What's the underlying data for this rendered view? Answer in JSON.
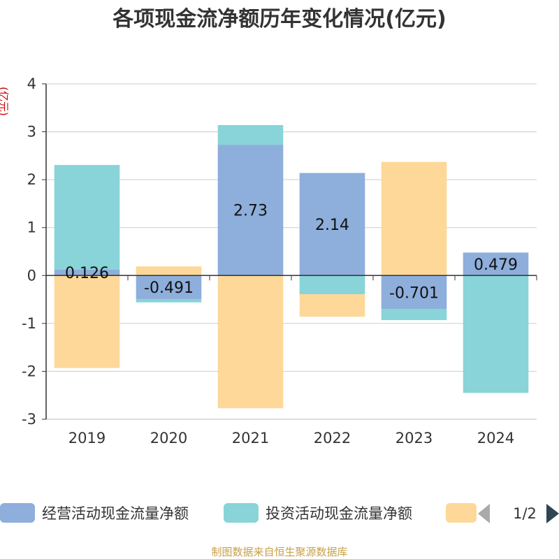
{
  "title": "各项现金流净额历年变化情况(亿元)",
  "unit_label": "(亿元)",
  "source": "制图数据来自恒生聚源数据库",
  "legend": {
    "items": [
      {
        "label": "经营活动现金流量净额",
        "color": "#8eaedb"
      },
      {
        "label": "投资活动现金流量净额",
        "color": "#88d4d8"
      },
      {
        "label": "",
        "color": "#fdd899"
      }
    ],
    "pager": "1/2",
    "prev_icon": "triangle-left-icon",
    "next_icon": "triangle-right-icon"
  },
  "chart_data": {
    "type": "bar",
    "stacked": true,
    "title": "各项现金流净额历年变化情况(亿元)",
    "ylabel": "(亿元)",
    "xlabel": "",
    "categories": [
      "2019",
      "2020",
      "2021",
      "2022",
      "2023",
      "2024"
    ],
    "ylim": [
      -3,
      4
    ],
    "yticks": [
      4,
      3,
      2,
      1,
      0,
      -1,
      -2,
      -3
    ],
    "grid": true,
    "legend_position": "bottom",
    "series": [
      {
        "name": "经营活动现金流量净额",
        "color": "#8eaedb",
        "values": [
          0.126,
          -0.491,
          2.73,
          2.14,
          -0.701,
          0.479
        ],
        "labels": [
          "0.126",
          "-0.491",
          "2.73",
          "2.14",
          "-0.701",
          "0.479"
        ]
      },
      {
        "name": "投资活动现金流量净额",
        "color": "#88d4d8",
        "values": [
          2.18,
          -0.07,
          0.41,
          -0.39,
          -0.23,
          -2.45
        ]
      },
      {
        "color": "#fdd899",
        "values": [
          -1.93,
          0.19,
          -2.77,
          -0.47,
          2.37,
          0
        ]
      }
    ]
  }
}
